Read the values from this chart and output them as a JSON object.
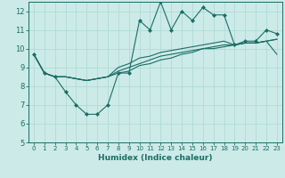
{
  "xlabel": "Humidex (Indice chaleur)",
  "xlim": [
    -0.5,
    23.5
  ],
  "ylim": [
    5,
    12.5
  ],
  "yticks": [
    5,
    6,
    7,
    8,
    9,
    10,
    11,
    12
  ],
  "xticks": [
    0,
    1,
    2,
    3,
    4,
    5,
    6,
    7,
    8,
    9,
    10,
    11,
    12,
    13,
    14,
    15,
    16,
    17,
    18,
    19,
    20,
    21,
    22,
    23
  ],
  "background_color": "#cceae8",
  "grid_color": "#aad8d4",
  "line_color": "#1a6e64",
  "series": [
    [
      9.7,
      8.7,
      8.5,
      7.7,
      7.0,
      6.5,
      6.5,
      7.0,
      8.7,
      8.7,
      11.5,
      11.0,
      12.5,
      11.0,
      12.0,
      11.5,
      12.2,
      11.8,
      11.8,
      10.2,
      10.4,
      10.4,
      11.0,
      10.8
    ],
    [
      9.7,
      8.7,
      8.5,
      8.5,
      8.4,
      8.3,
      8.4,
      8.5,
      8.7,
      8.8,
      9.1,
      9.2,
      9.4,
      9.5,
      9.7,
      9.8,
      10.0,
      10.1,
      10.2,
      10.2,
      10.3,
      10.3,
      10.4,
      10.5
    ],
    [
      9.7,
      8.7,
      8.5,
      8.5,
      8.4,
      8.3,
      8.4,
      8.5,
      9.0,
      9.2,
      9.5,
      9.6,
      9.8,
      9.9,
      10.0,
      10.1,
      10.2,
      10.3,
      10.4,
      10.2,
      10.3,
      10.3,
      10.4,
      10.5
    ],
    [
      9.7,
      8.7,
      8.5,
      8.5,
      8.4,
      8.3,
      8.4,
      8.5,
      8.8,
      9.0,
      9.2,
      9.4,
      9.6,
      9.7,
      9.8,
      9.9,
      10.0,
      10.0,
      10.1,
      10.2,
      10.3,
      10.3,
      10.4,
      9.7
    ]
  ],
  "marker_series": 0,
  "marker": "D",
  "marker_size": 2.0,
  "linewidth": 0.8,
  "xlabel_fontsize": 6.5,
  "tick_fontsize_x": 5.0,
  "tick_fontsize_y": 6.0
}
